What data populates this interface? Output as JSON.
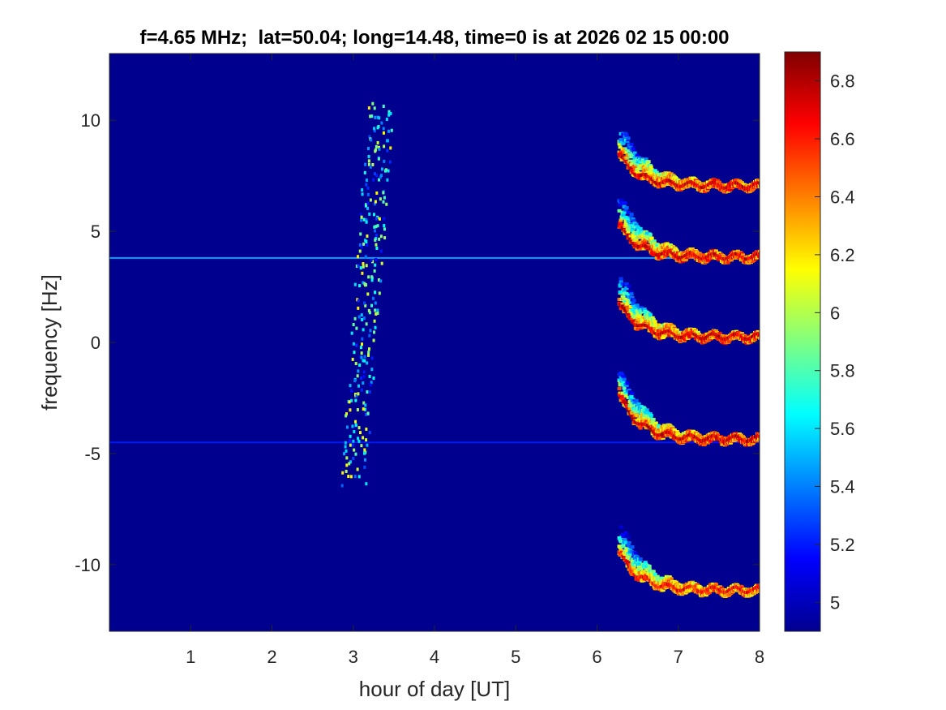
{
  "chart_data": {
    "type": "heatmap",
    "title": "f=4.65 MHz;  lat=50.04; long=14.48, time=0 is at 2026 02 15 00:00",
    "xlabel": "hour of day [UT]",
    "ylabel": "frequency [Hz]",
    "xlim": [
      0,
      8
    ],
    "ylim": [
      -13,
      13
    ],
    "x_ticks": [
      1,
      2,
      3,
      4,
      5,
      6,
      7,
      8
    ],
    "x_tick_labels": [
      "1",
      "2",
      "3",
      "4",
      "5",
      "6",
      "7",
      "8"
    ],
    "y_ticks": [
      10,
      5,
      0,
      -5,
      -10
    ],
    "y_tick_labels": [
      "10",
      "5",
      "0",
      "-5",
      "-10"
    ],
    "colorbar": {
      "colormap": "jet",
      "clim": [
        4.9,
        6.9
      ],
      "ticks": [
        6.8,
        6.6,
        6.4,
        6.2,
        6,
        5.8,
        5.6,
        5.4,
        5.2,
        5
      ],
      "tick_labels": [
        "6.8",
        "6.6",
        "6.4",
        "6.2",
        "6",
        "5.8",
        "5.6",
        "5.4",
        "5.2",
        "5"
      ]
    },
    "background_value": 4.9,
    "features": [
      {
        "kind": "steady_line",
        "x_start": 0,
        "x_end": 8,
        "frequency": 3.8,
        "value": 5.5
      },
      {
        "kind": "steady_line",
        "x_start": 0,
        "x_end": 8,
        "frequency": -4.5,
        "value": 5.2
      },
      {
        "kind": "slanted_traces",
        "x_start": 2.9,
        "x_end": 3.4,
        "f_top": 10.5,
        "f_bottom": -6.0,
        "peak_value": 6.2
      },
      {
        "kind": "decaying_trace",
        "x_start": 6.25,
        "x_end": 8,
        "f_start": 8.5,
        "f_end": 7.1,
        "peak_value": 6.9
      },
      {
        "kind": "decaying_trace",
        "x_start": 6.25,
        "x_end": 8,
        "f_start": 5.3,
        "f_end": 3.9,
        "peak_value": 6.9
      },
      {
        "kind": "decaying_trace",
        "x_start": 6.25,
        "x_end": 8,
        "f_start": 1.8,
        "f_end": 0.3,
        "peak_value": 6.9
      },
      {
        "kind": "decaying_trace",
        "x_start": 6.25,
        "x_end": 8,
        "f_start": -2.3,
        "f_end": -4.3,
        "peak_value": 6.9
      },
      {
        "kind": "decaying_trace",
        "x_start": 6.25,
        "x_end": 8,
        "f_start": -9.4,
        "f_end": -11.1,
        "peak_value": 6.8
      }
    ]
  }
}
